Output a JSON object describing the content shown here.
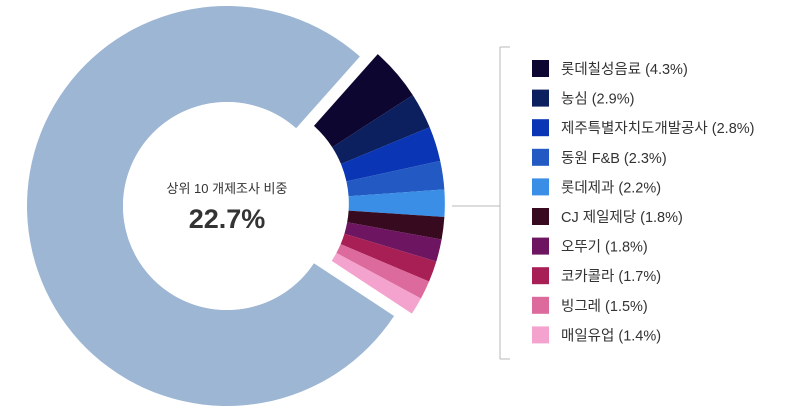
{
  "chart_data": {
    "type": "pie",
    "variant": "donut",
    "center_label": "상위 10 개제조사 비중",
    "center_value": "22.7%",
    "slices": [
      {
        "label": "롯데칠성음료 (4.3%)",
        "value": 4.3,
        "color": "#0d0630"
      },
      {
        "label": "농심 (2.9%)",
        "value": 2.9,
        "color": "#0c1f5e"
      },
      {
        "label": "제주특별자치도개발공사 (2.8%)",
        "value": 2.8,
        "color": "#0a35b5"
      },
      {
        "label": "동원 F&B (2.3%)",
        "value": 2.3,
        "color": "#2259c2"
      },
      {
        "label": "롯데제과 (2.2%)",
        "value": 2.2,
        "color": "#3b8ee6"
      },
      {
        "label": "CJ 제일제당 (1.8%)",
        "value": 1.8,
        "color": "#380a1f"
      },
      {
        "label": "오뚜기 (1.8%)",
        "value": 1.8,
        "color": "#6d1560"
      },
      {
        "label": "코카콜라 (1.7%)",
        "value": 1.7,
        "color": "#a81f55"
      },
      {
        "label": "빙그레 (1.5%)",
        "value": 1.5,
        "color": "#dd6a9c"
      },
      {
        "label": "매일유업 (1.4%)",
        "value": 1.4,
        "color": "#f3a3cd"
      }
    ],
    "rest": {
      "value": 77.3,
      "color": "#9db6d4"
    },
    "legend_position": "right"
  }
}
